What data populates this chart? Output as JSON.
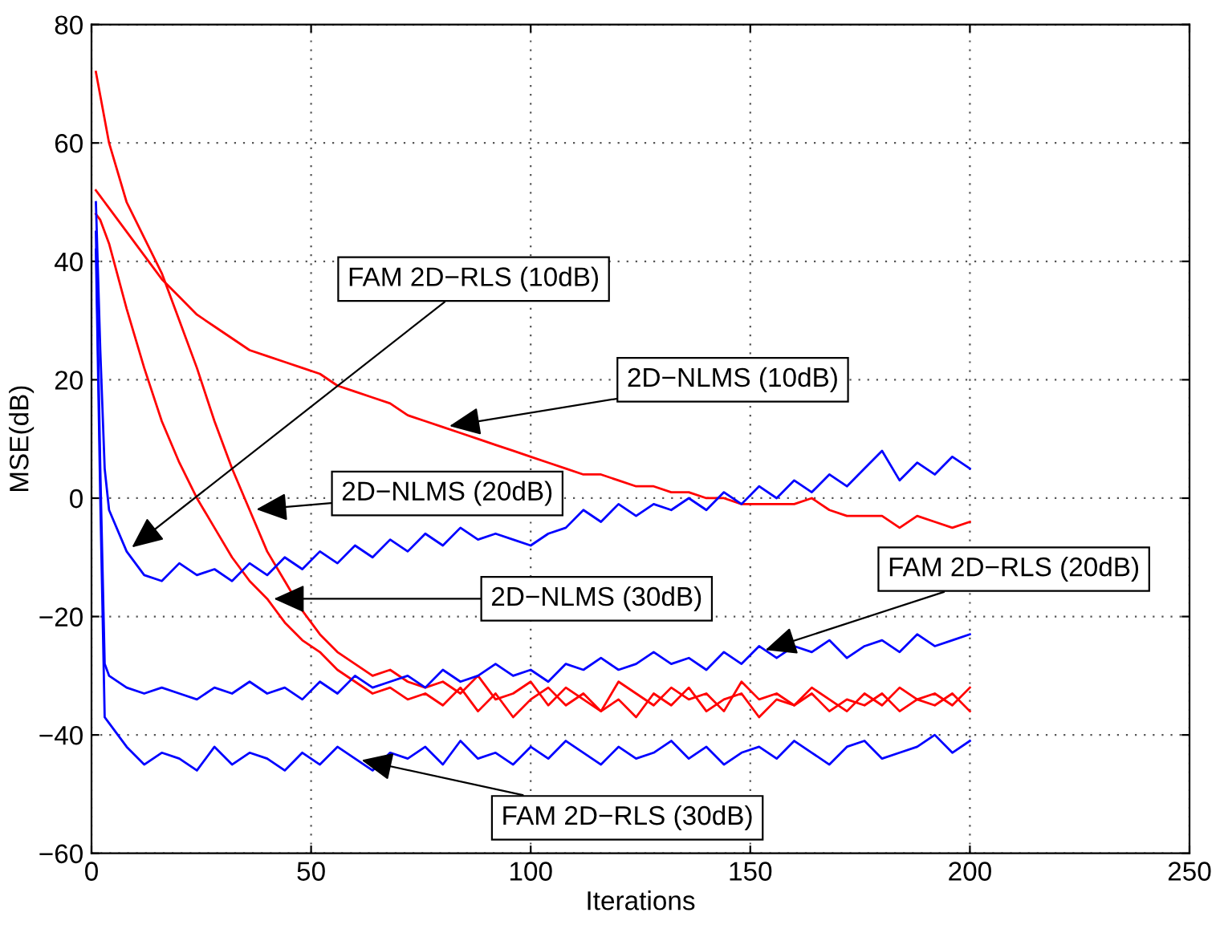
{
  "chart_data": {
    "type": "line",
    "xlabel": "Iterations",
    "ylabel": "MSE(dB)",
    "x": [
      1,
      2,
      3,
      4,
      8,
      12,
      16,
      20,
      24,
      28,
      32,
      36,
      40,
      44,
      48,
      52,
      56,
      60,
      64,
      68,
      72,
      76,
      80,
      84,
      88,
      92,
      96,
      100,
      104,
      108,
      112,
      116,
      120,
      124,
      128,
      132,
      136,
      140,
      144,
      148,
      152,
      156,
      160,
      164,
      168,
      172,
      176,
      180,
      184,
      188,
      192,
      196,
      200
    ],
    "series": [
      {
        "color": "#ff0000",
        "values": [
          52,
          51,
          50,
          49,
          45,
          41,
          37,
          34,
          31,
          29,
          27,
          25,
          24,
          23,
          22,
          21,
          19,
          18,
          17,
          16,
          14,
          13,
          12,
          11,
          10,
          9,
          8,
          7,
          6,
          5,
          4,
          4,
          3,
          2,
          2,
          1,
          1,
          0,
          0,
          -1,
          -1,
          -1,
          -1,
          0,
          -2,
          -3,
          -3,
          -3,
          -5,
          -3,
          -4,
          -5,
          -4
        ]
      },
      {
        "color": "#ff0000",
        "values": [
          72,
          68,
          64,
          60,
          50,
          44,
          38,
          30,
          22,
          13,
          5,
          -2,
          -9,
          -14,
          -19,
          -23,
          -26,
          -28,
          -30,
          -29,
          -31,
          -32,
          -31,
          -33,
          -30,
          -34,
          -33,
          -31,
          -35,
          -32,
          -34,
          -36,
          -31,
          -33,
          -35,
          -32,
          -34,
          -33,
          -36,
          -31,
          -34,
          -33,
          -35,
          -32,
          -34,
          -36,
          -33,
          -35,
          -32,
          -34,
          -33,
          -35,
          -32
        ]
      },
      {
        "color": "#ff0000",
        "values": [
          48,
          47,
          45,
          43,
          32,
          22,
          13,
          6,
          0,
          -5,
          -10,
          -14,
          -17,
          -21,
          -24,
          -26,
          -29,
          -31,
          -33,
          -32,
          -34,
          -33,
          -35,
          -32,
          -36,
          -33,
          -37,
          -34,
          -32,
          -35,
          -33,
          -36,
          -34,
          -37,
          -33,
          -35,
          -32,
          -36,
          -34,
          -33,
          -37,
          -34,
          -35,
          -33,
          -36,
          -34,
          -35,
          -33,
          -36,
          -34,
          -35,
          -33,
          -36
        ]
      },
      {
        "color": "#0000ff",
        "values": [
          50,
          25,
          5,
          -2,
          -9,
          -13,
          -14,
          -11,
          -13,
          -12,
          -14,
          -11,
          -13,
          -10,
          -12,
          -9,
          -11,
          -8,
          -10,
          -7,
          -9,
          -6,
          -8,
          -5,
          -7,
          -6,
          -7,
          -8,
          -6,
          -5,
          -2,
          -4,
          -1,
          -3,
          -1,
          -2,
          0,
          -2,
          1,
          -1,
          2,
          0,
          3,
          1,
          4,
          2,
          5,
          8,
          3,
          6,
          4,
          7,
          5
        ]
      },
      {
        "color": "#0000ff",
        "values": [
          45,
          5,
          -28,
          -30,
          -32,
          -33,
          -32,
          -33,
          -34,
          -32,
          -33,
          -31,
          -33,
          -32,
          -34,
          -31,
          -33,
          -30,
          -32,
          -31,
          -30,
          -32,
          -29,
          -31,
          -30,
          -28,
          -30,
          -29,
          -31,
          -28,
          -29,
          -27,
          -29,
          -28,
          -26,
          -28,
          -27,
          -29,
          -26,
          -28,
          -25,
          -27,
          -25,
          -26,
          -24,
          -27,
          -25,
          -24,
          -26,
          -23,
          -25,
          -24,
          -23
        ]
      },
      {
        "color": "#0000ff",
        "values": [
          42,
          0,
          -37,
          -38,
          -42,
          -45,
          -43,
          -44,
          -46,
          -42,
          -45,
          -43,
          -44,
          -46,
          -43,
          -45,
          -42,
          -44,
          -46,
          -43,
          -44,
          -42,
          -45,
          -41,
          -44,
          -43,
          -45,
          -42,
          -44,
          -41,
          -43,
          -45,
          -42,
          -44,
          -43,
          -41,
          -44,
          -42,
          -45,
          -43,
          -42,
          -44,
          -41,
          -43,
          -45,
          -42,
          -41,
          -44,
          -43,
          -42,
          -40,
          -43,
          -41
        ]
      }
    ],
    "annotations": [
      {
        "text": "FAM 2D−RLS (10dB)",
        "x": 8,
        "y": -9
      },
      {
        "text": "2D−NLMS (10dB)",
        "x": 80,
        "y": 12
      },
      {
        "text": "2D−NLMS (20dB)",
        "x": 36,
        "y": -2
      },
      {
        "text": "2D−NLMS (30dB)",
        "x": 40,
        "y": -17
      },
      {
        "text": "FAM 2D−RLS (20dB)",
        "x": 152,
        "y": -26
      },
      {
        "text": "FAM 2D−RLS (30dB)",
        "x": 60,
        "y": -44
      }
    ],
    "xlim": [
      0,
      250
    ],
    "ylim": [
      -60,
      80
    ],
    "xticks": [
      0,
      50,
      100,
      150,
      200,
      250
    ],
    "yticks": [
      {
        "value": -60,
        "label": "−60"
      },
      {
        "value": -40,
        "label": "−40"
      },
      {
        "value": -20,
        "label": "−20"
      },
      0,
      20,
      40,
      60,
      80
    ],
    "grid": true,
    "line_style": "solid",
    "marker": "none",
    "legend": false
  }
}
